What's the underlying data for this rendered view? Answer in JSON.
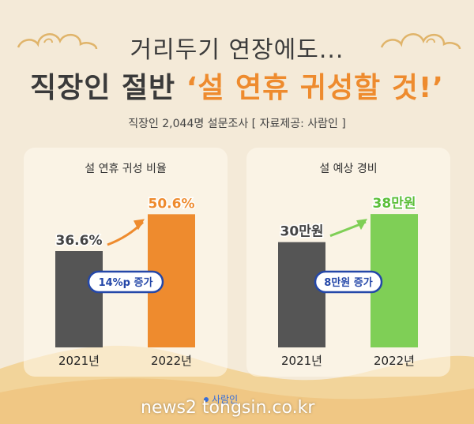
{
  "header": {
    "title_line1": "거리두기 연장에도...",
    "title_line2_dark": "직장인 절반 ",
    "title_line2_accent": "‘설 연휴 귀성할 것!’",
    "subtitle": "직장인 2,044명 설문조사 [ 자료제공: 사람인 ]"
  },
  "colors": {
    "accent_orange": "#ee8b2e",
    "dark_bar": "#555555",
    "green_bar": "#7fcf56",
    "badge_blue": "#2447a8"
  },
  "chart_data": [
    {
      "type": "bar",
      "title": "설 연휴 귀성 비율",
      "categories": [
        "2021년",
        "2022년"
      ],
      "values": [
        36.6,
        50.6
      ],
      "value_labels": [
        "36.6%",
        "50.6%"
      ],
      "bar_colors": [
        "#555555",
        "#ee8b2e"
      ],
      "label_colors": [
        "#444444",
        "#ee8b2e"
      ],
      "annotation": "14%p 증가",
      "ylim": [
        0,
        60
      ]
    },
    {
      "type": "bar",
      "title": "설 예상  경비",
      "categories": [
        "2021년",
        "2022년"
      ],
      "values": [
        30,
        38
      ],
      "value_labels": [
        "30만원",
        "38만원"
      ],
      "bar_colors": [
        "#555555",
        "#7fcf56"
      ],
      "label_colors": [
        "#444444",
        "#5cbf3a"
      ],
      "annotation": "8만원 증가",
      "ylim": [
        0,
        45
      ]
    }
  ],
  "footer": {
    "logo_text": "사람인",
    "watermark": "news2 tongsin.co.kr"
  }
}
